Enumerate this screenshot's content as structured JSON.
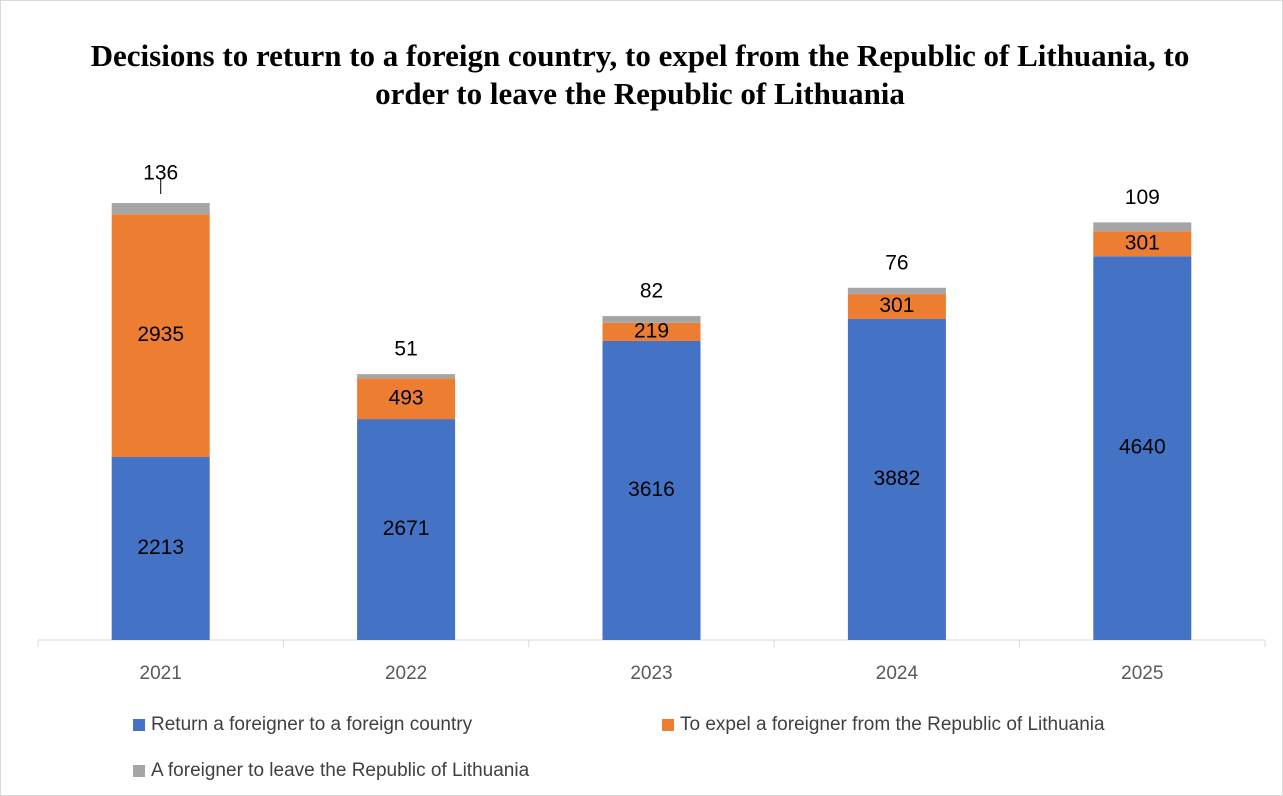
{
  "chart_data": {
    "type": "bar",
    "stacked": true,
    "title": "Decisions to return to a foreign country,  to expel from the Republic of Lithuania,  to order to leave the Republic of Lithuania",
    "categories": [
      "2021",
      "2022",
      "2023",
      "2024",
      "2025"
    ],
    "series": [
      {
        "name": "Return a foreigner to a foreign country",
        "color": "#4472c4",
        "values": [
          2213,
          2671,
          3616,
          3882,
          4640
        ]
      },
      {
        "name": "To expel a foreigner from the Republic of Lithuania",
        "color": "#ed7d31",
        "values": [
          2935,
          493,
          219,
          301,
          301
        ]
      },
      {
        "name": "A foreigner to leave the Republic of Lithuania",
        "color": "#a5a5a5",
        "values": [
          136,
          51,
          82,
          76,
          109
        ]
      }
    ],
    "xlabel": "",
    "ylabel": "",
    "ylim": [
      0,
      5500
    ],
    "grid": false,
    "legend": "bottom"
  }
}
